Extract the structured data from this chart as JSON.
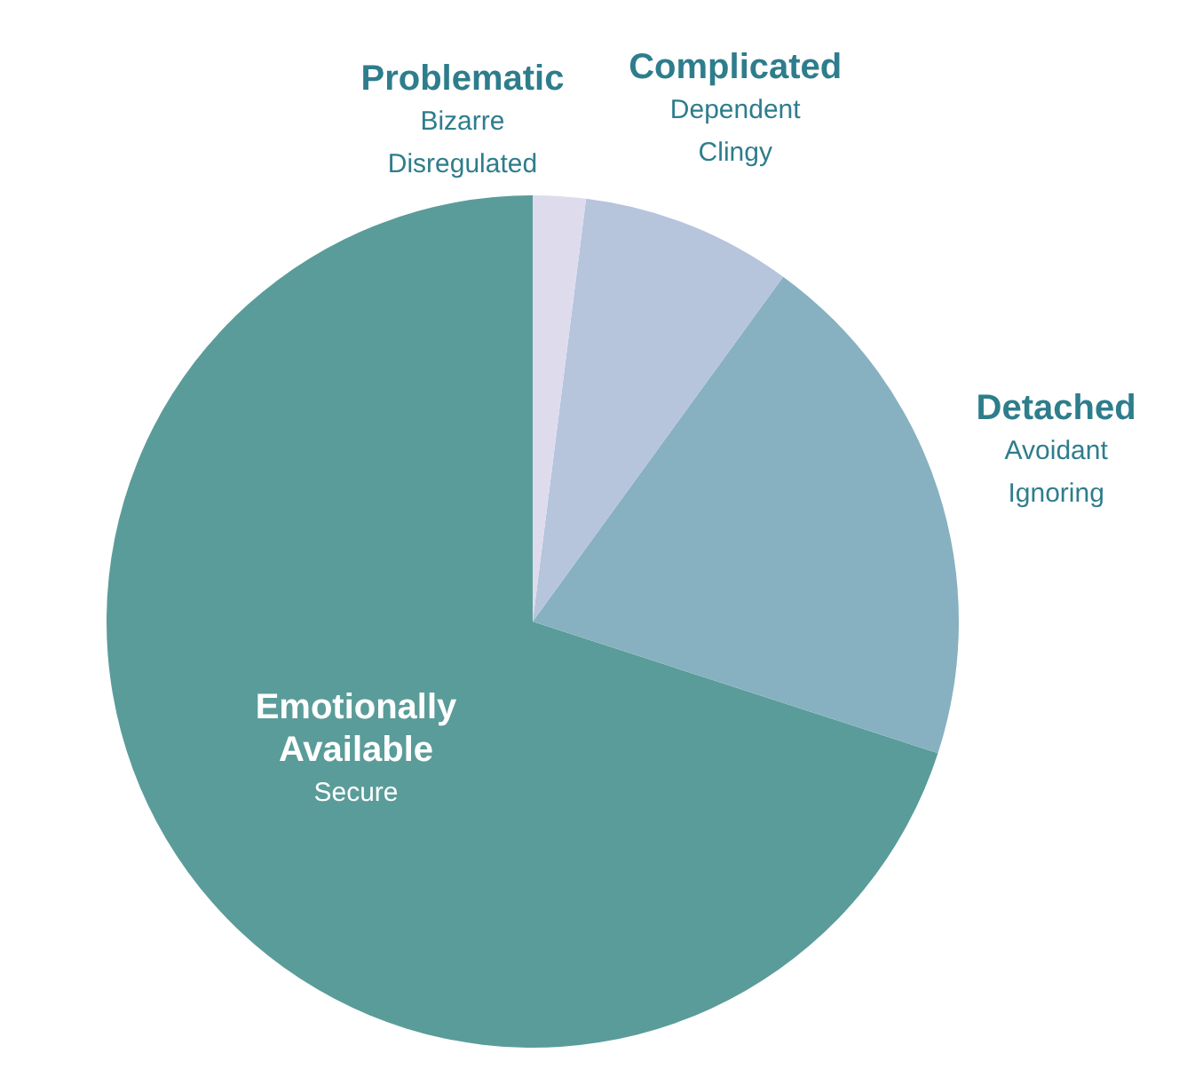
{
  "chart_data": {
    "type": "pie",
    "categories": [
      "Emotionally Available",
      "Detached",
      "Complicated",
      "Problematic"
    ],
    "values": [
      70,
      20,
      8,
      2
    ],
    "colors": [
      "#5a9c9a",
      "#87b1c0",
      "#b6c4dc",
      "#dedbec"
    ],
    "annotations": [
      "Secure",
      "Avoidant\nIgnoring",
      "Dependent\nClingy",
      "Bizarre\nDisregulated"
    ],
    "legend": false
  }
}
